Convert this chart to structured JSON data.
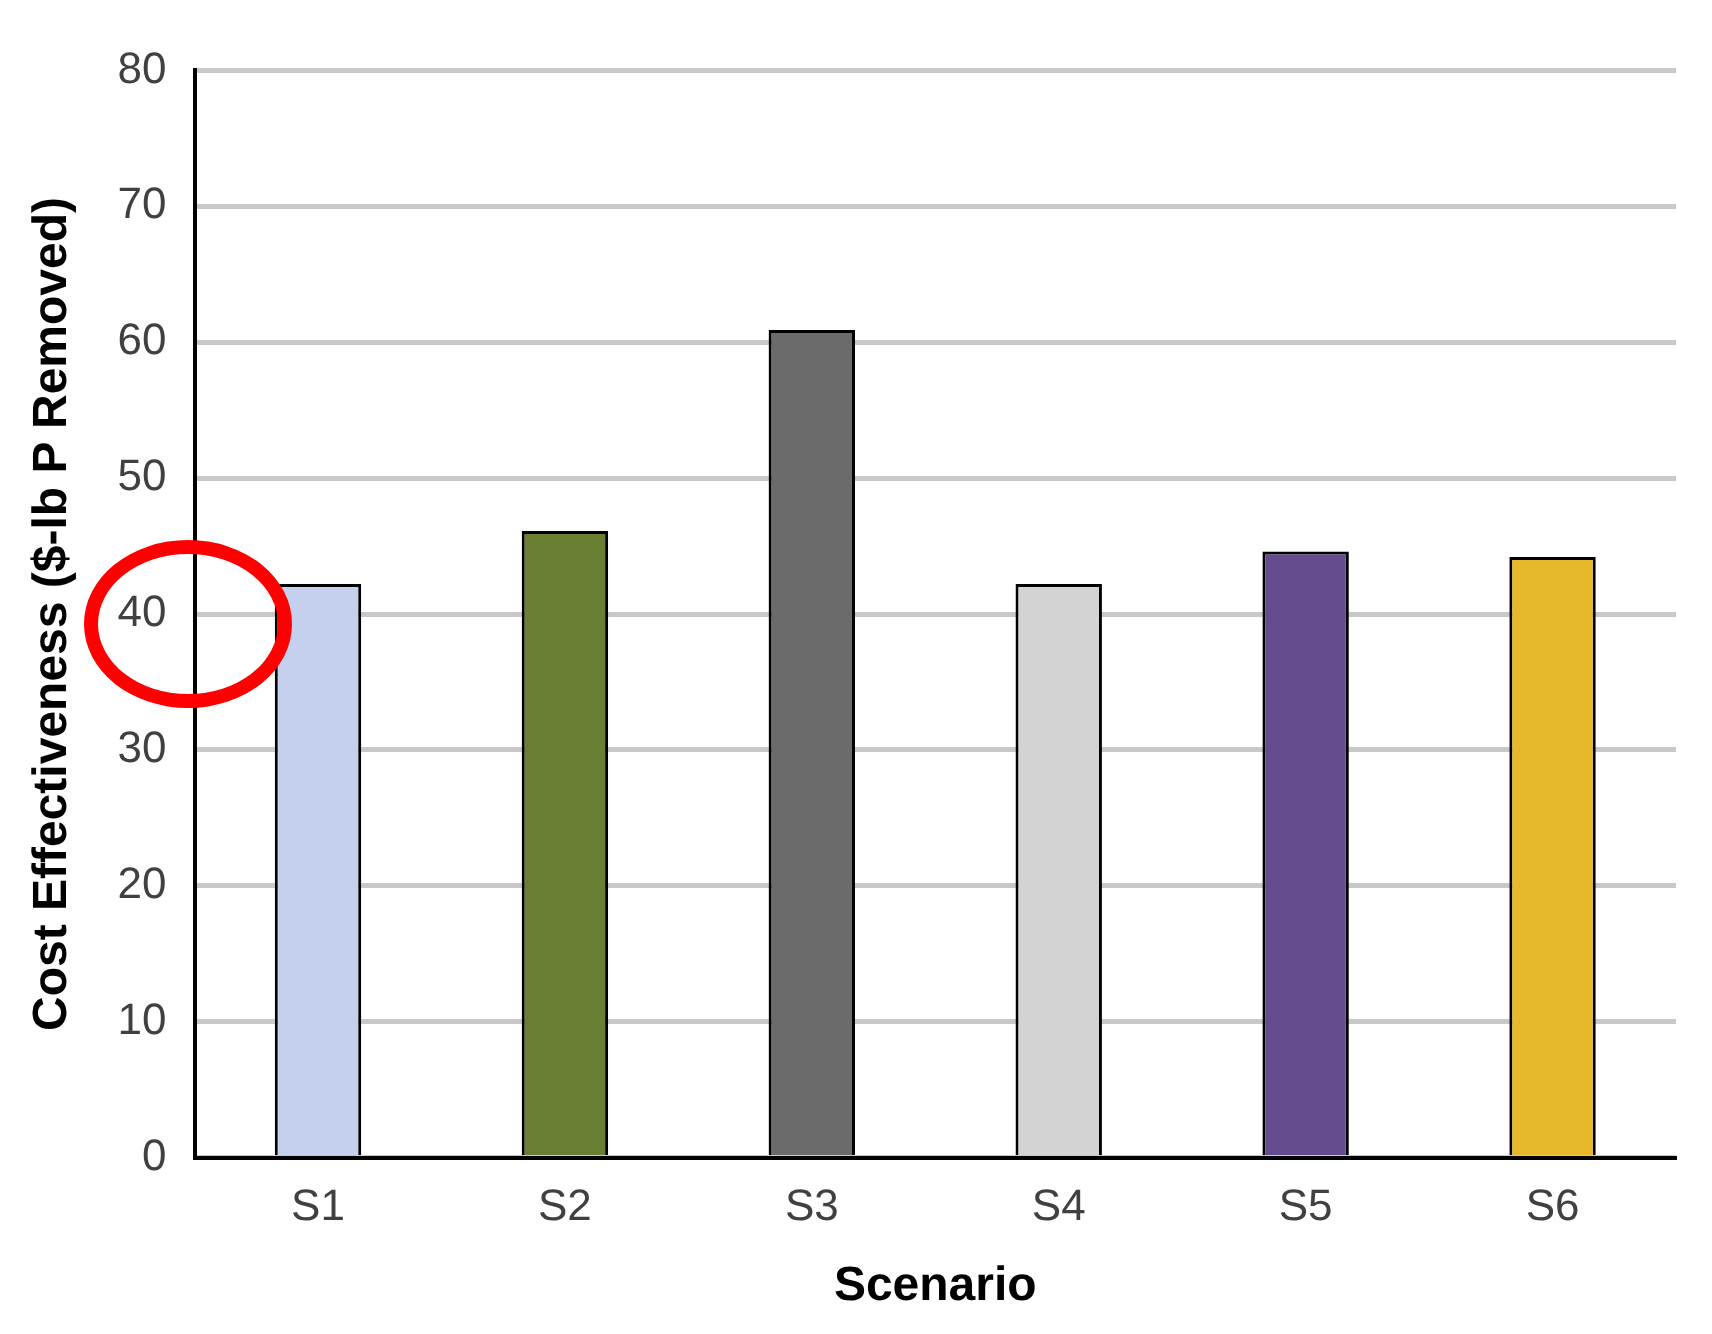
{
  "chart_data": {
    "type": "bar",
    "xlabel": "Scenario",
    "ylabel": "Cost Effectiveness ($-lb P Removed)",
    "categories": [
      "S1",
      "S2",
      "S3",
      "S4",
      "S5",
      "S6"
    ],
    "values": [
      42.2,
      46.1,
      60.9,
      42.2,
      44.6,
      44.2
    ],
    "colors": [
      "#c5d0ee",
      "#6b7f32",
      "#6b6b6b",
      "#d3d3d3",
      "#654c8f",
      "#e6b82a"
    ],
    "ylim": [
      0,
      80
    ],
    "yticks": [
      0,
      10,
      20,
      30,
      40,
      50,
      60,
      70,
      80
    ],
    "grid": "y",
    "legend": false
  }
}
